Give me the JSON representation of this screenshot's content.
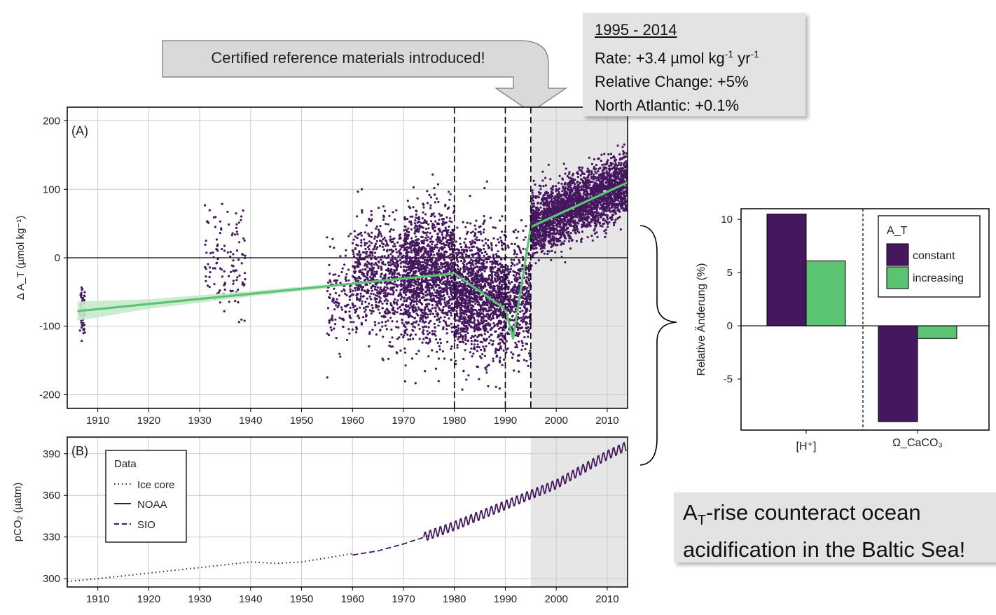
{
  "arrow_callout": {
    "text": "Certified reference materials introduced!"
  },
  "info_box": {
    "heading": "1995 - 2014",
    "rate_prefix": "Rate: +3.4 µmol kg",
    "rate_sup1": "-1",
    "rate_mid": " yr",
    "rate_sup2": "-1",
    "relative_change": "Relative Change: +5%",
    "north_atlantic": "North Atlantic: +0.1%"
  },
  "conclusion": {
    "a": "A",
    "sub": "T",
    "line1_rest": "-rise counteract ocean",
    "line2": "acidification in the Baltic Sea!"
  },
  "colors": {
    "purple": "#45175f",
    "green": "#5bc472",
    "green_band": "#c5eacb",
    "shade": "#e6e6e6",
    "grid": "#cccccc"
  },
  "chart_data": [
    {
      "type": "scatter",
      "panel_label": "(A)",
      "ylabel": "Δ A_T (µmol kg⁻¹)",
      "xlim": [
        1904,
        2014
      ],
      "ylim": [
        -220,
        220
      ],
      "xticks": [
        1910,
        1920,
        1930,
        1940,
        1950,
        1960,
        1970,
        1980,
        1990,
        2000,
        2010
      ],
      "yticks": [
        -200,
        -100,
        0,
        100,
        200
      ],
      "shaded_period": [
        1995,
        2014
      ],
      "vertical_lines": [
        1980,
        1990,
        1995
      ],
      "clusters": [
        {
          "x": [
            1906.5,
            1907.5
          ],
          "y_center": -75,
          "y_spread": 35,
          "n": 60
        },
        {
          "x": [
            1931,
            1939
          ],
          "y_center": -5,
          "y_spread": 70,
          "n": 120
        },
        {
          "x": [
            1955,
            1960
          ],
          "y_center": -60,
          "y_spread": 60,
          "n": 120
        },
        {
          "x": [
            1960,
            1970
          ],
          "y_center": -30,
          "y_spread": 75,
          "n": 700
        },
        {
          "x": [
            1970,
            1980
          ],
          "y_center": -25,
          "y_spread": 85,
          "n": 1500
        },
        {
          "x": [
            1980,
            1990
          ],
          "y_center": -55,
          "y_spread": 80,
          "n": 1500
        },
        {
          "x": [
            1990,
            1995
          ],
          "y_center": -60,
          "y_spread": 70,
          "n": 500
        },
        {
          "x": [
            1995,
            2014
          ],
          "y_center": [
            45,
            110
          ],
          "y_spread": 40,
          "n": 2800
        }
      ],
      "trend_line": {
        "x": [
          1906,
          1980,
          1990,
          1991.5,
          1995,
          2014
        ],
        "y": [
          -78,
          -23,
          -75,
          -118,
          45,
          110
        ]
      },
      "confidence_band": {
        "x": [
          1906,
          1920,
          1940,
          1955
        ],
        "half_width": [
          14,
          7,
          4,
          3
        ]
      }
    },
    {
      "type": "line",
      "panel_label": "(B)",
      "ylabel": "pCO₂ (µatm)",
      "xlim": [
        1904,
        2014
      ],
      "ylim": [
        294,
        402
      ],
      "xticks": [
        1910,
        1920,
        1930,
        1940,
        1950,
        1960,
        1970,
        1980,
        1990,
        2000,
        2010
      ],
      "yticks": [
        300,
        330,
        360,
        390
      ],
      "shaded_period": [
        1995,
        2014
      ],
      "legend": {
        "title": "Data",
        "entries": [
          "Ice core",
          "NOAA",
          "SIO"
        ],
        "placement": "top-left"
      },
      "series": [
        {
          "name": "Ice core",
          "style": "dotted",
          "x": [
            1904,
            1910,
            1920,
            1930,
            1940,
            1945,
            1950,
            1955,
            1960
          ],
          "y": [
            298,
            300,
            304,
            308,
            312,
            311,
            312,
            315,
            318
          ]
        },
        {
          "name": "SIO",
          "style": "dashed",
          "x": [
            1960,
            1965,
            1970,
            1975
          ],
          "y": [
            317,
            320,
            325,
            331
          ]
        },
        {
          "name": "NOAA",
          "style": "solid",
          "x": [
            1974,
            1980,
            1990,
            2000,
            2010,
            2014
          ],
          "y": [
            330,
            338,
            353,
            368,
            389,
            396
          ],
          "seasonal_amplitude": 3.5
        }
      ]
    },
    {
      "type": "bar",
      "ylabel": "Relative Änderung (%)",
      "ylim": [
        -9.8,
        11
      ],
      "yticks": [
        -5,
        0,
        5,
        10
      ],
      "ytick_labels": [
        "-5",
        "0",
        "5",
        "10"
      ],
      "categories": [
        "[H⁺]",
        "Ω_CaCO₃"
      ],
      "legend": {
        "title": "A_T",
        "placement": "top-right"
      },
      "series": [
        {
          "name": "constant",
          "values": [
            10.5,
            -9.0
          ]
        },
        {
          "name": "increasing",
          "values": [
            6.1,
            -1.2
          ]
        }
      ]
    }
  ]
}
